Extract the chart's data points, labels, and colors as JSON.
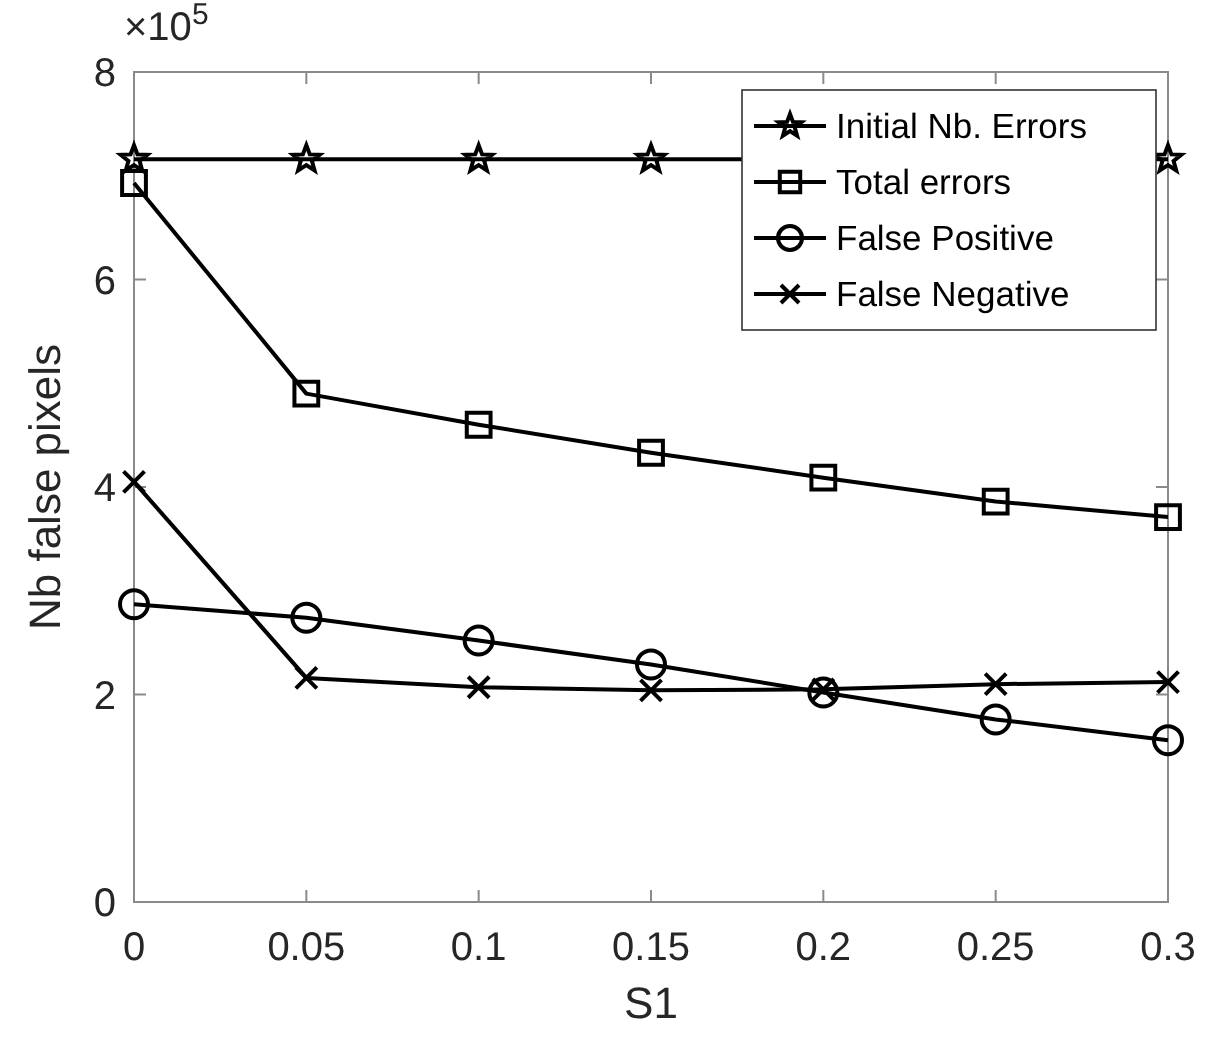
{
  "chart_data": {
    "type": "line",
    "xlabel": "S1",
    "ylabel": "Nb false pixels",
    "annotations": [
      "×10$^{5}$"
    ],
    "x": [
      0,
      0.05,
      0.1,
      0.15,
      0.2,
      0.25,
      0.3
    ],
    "xlim": [
      0,
      0.3
    ],
    "xticks": [
      0,
      0.05,
      0.1,
      0.15,
      0.2,
      0.25,
      0.3
    ],
    "ylim": [
      0,
      8
    ],
    "yticks": [
      0,
      2,
      4,
      6,
      8
    ],
    "grid": false,
    "legend": "top right",
    "line_style": "solid",
    "series": [
      {
        "name": "Initial Nb. Errors",
        "color": "#000000",
        "marker": "star",
        "values": [
          7.16,
          7.16,
          7.16,
          7.16,
          null,
          null,
          7.16
        ]
      },
      {
        "name": "Total errors",
        "color": "#000000",
        "marker": "square",
        "values": [
          6.93,
          4.9,
          4.6,
          4.33,
          4.09,
          3.86,
          3.71
        ]
      },
      {
        "name": "False Positive",
        "color": "#000000",
        "marker": "circle",
        "values": [
          2.87,
          2.74,
          2.52,
          2.29,
          2.02,
          1.76,
          1.56
        ]
      },
      {
        "name": "False Negative",
        "color": "#000000",
        "marker": "cross",
        "values": [
          4.05,
          2.16,
          2.07,
          2.04,
          2.05,
          2.1,
          2.12
        ]
      }
    ]
  }
}
